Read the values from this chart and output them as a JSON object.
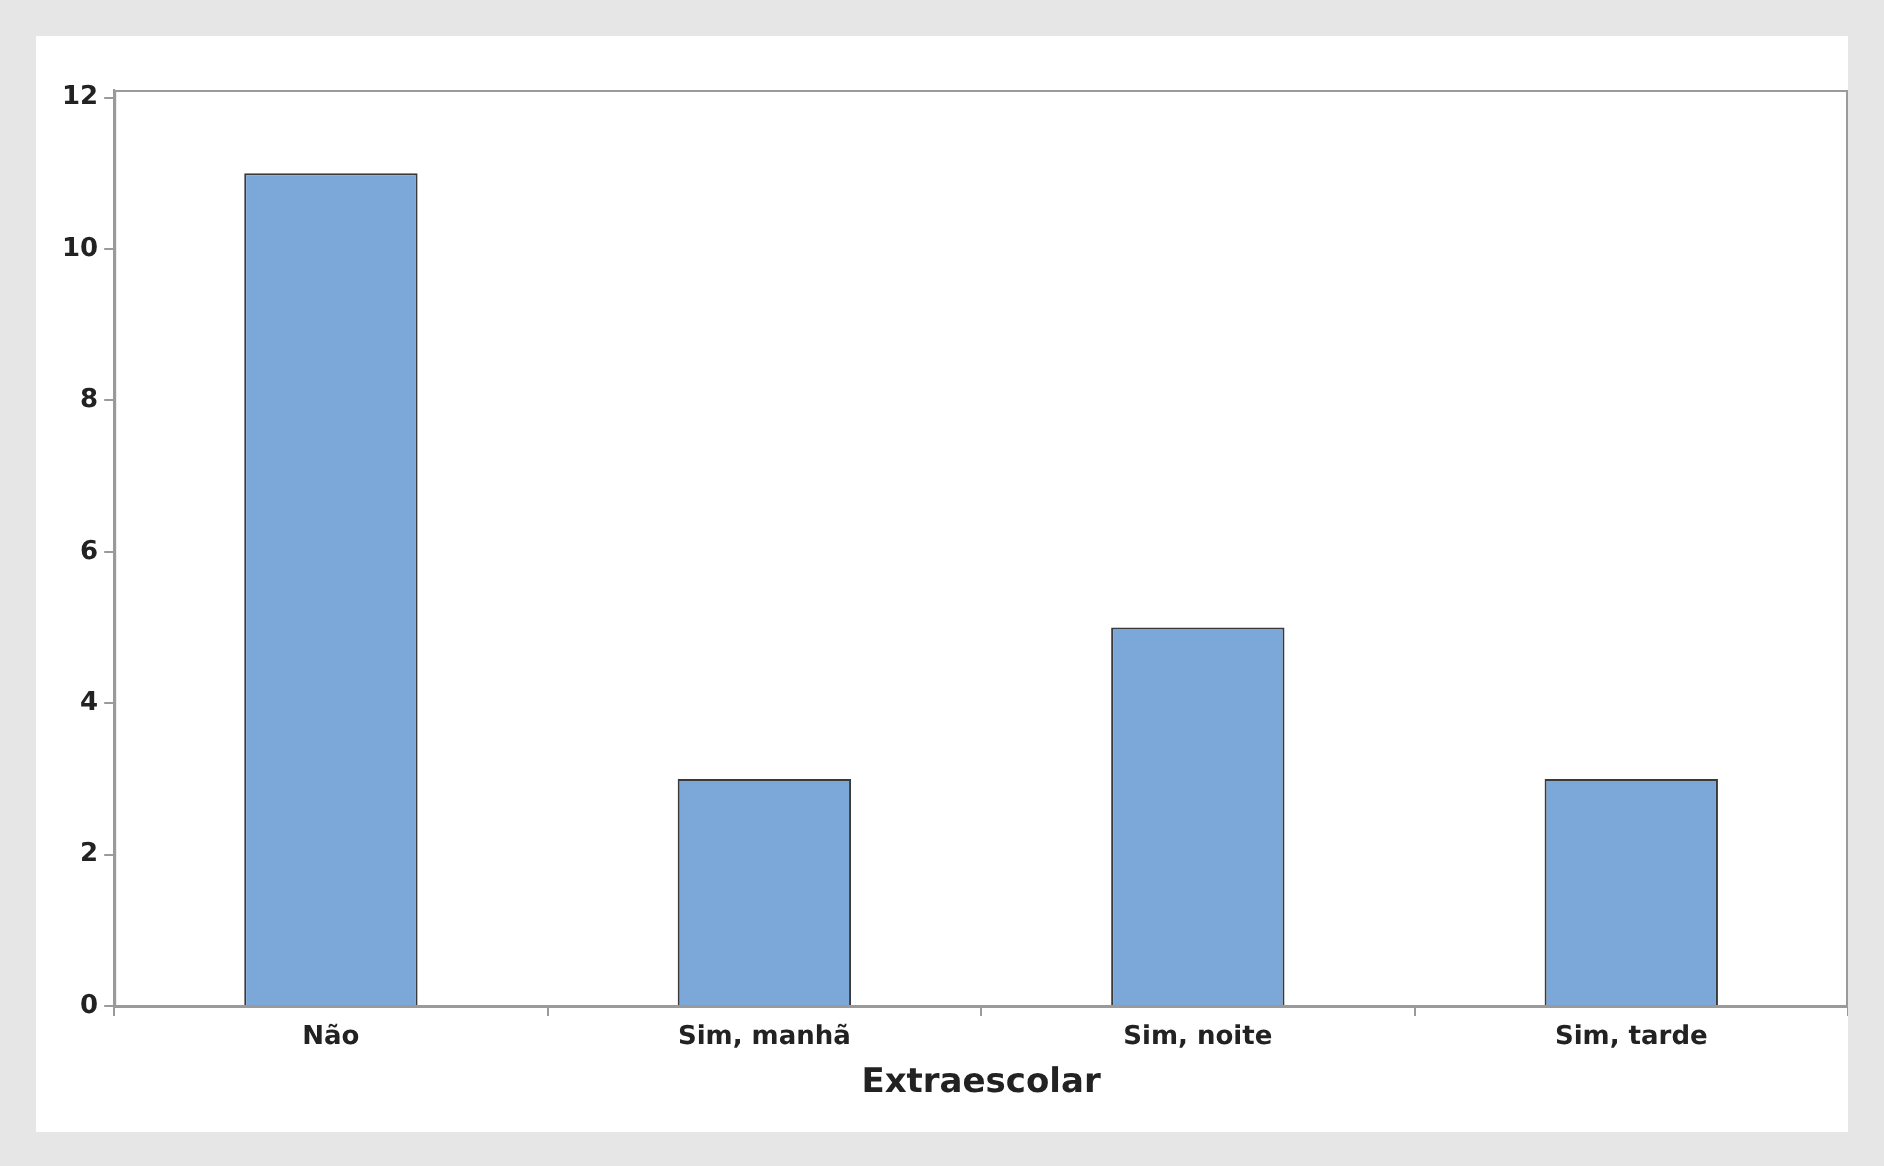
{
  "chart_data": {
    "type": "bar",
    "xlabel": "Extraescolar",
    "categories": [
      "Não",
      "Sim, manhã",
      "Sim, noite",
      "Sim, tarde"
    ],
    "values": [
      11,
      3,
      5,
      3
    ],
    "color": "#7ba7d9",
    "ylim": [
      0,
      12.1
    ],
    "yticks": [
      0,
      2,
      4,
      6,
      8,
      10,
      12
    ],
    "grid": false,
    "legend": false
  }
}
